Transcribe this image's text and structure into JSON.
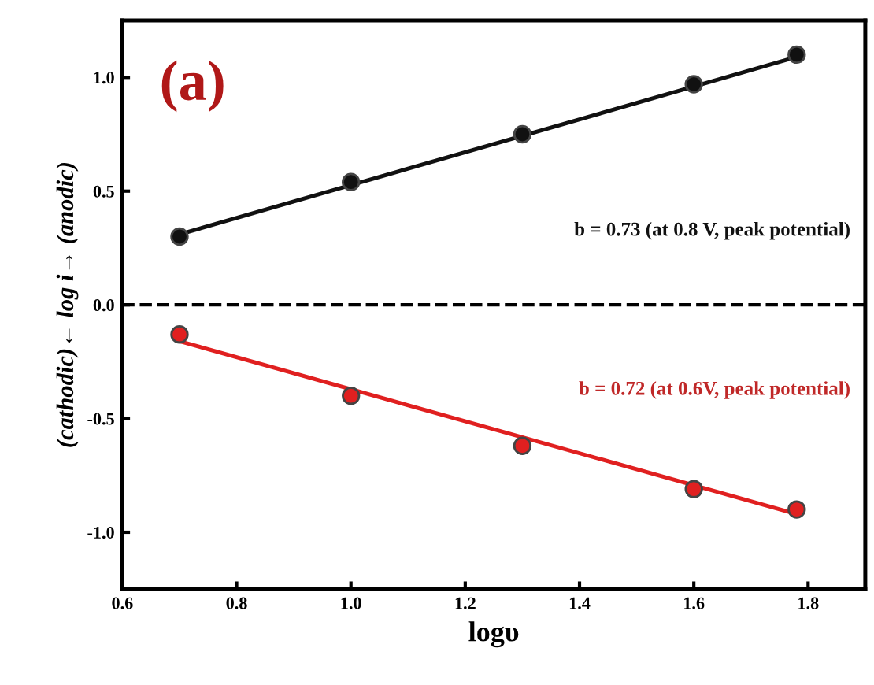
{
  "chart_data": {
    "type": "scatter",
    "xlabel": "logυ",
    "ylabel": "(cathodic)← log i→ (anodic)",
    "xlim": [
      0.6,
      1.9
    ],
    "ylim": [
      -1.25,
      1.25
    ],
    "xticks": [
      0.6,
      0.8,
      {
        "value": 1.0,
        "label": "1.0"
      },
      1.2,
      1.4,
      1.6,
      1.8
    ],
    "yticks": [
      {
        "value": -1.0,
        "label": "-1.0"
      },
      -0.5,
      {
        "value": 0.0,
        "label": "0.0"
      },
      0.5,
      {
        "value": 1.0,
        "label": "1.0"
      }
    ],
    "grid": false,
    "series": [
      {
        "color": "#111111",
        "marker": "circle",
        "x": [
          0.7,
          1.0,
          1.3,
          1.6,
          1.78
        ],
        "values": [
          0.3,
          0.54,
          0.75,
          0.97,
          1.1
        ]
      },
      {
        "type": "line",
        "marker": "none",
        "color": "#111111",
        "x": [
          0.7,
          1.78
        ],
        "values": [
          0.31,
          1.09
        ]
      },
      {
        "color": "#e02020",
        "marker": "circle",
        "x": [
          0.7,
          1.0,
          1.3,
          1.6,
          1.78
        ],
        "values": [
          -0.13,
          -0.4,
          -0.62,
          -0.81,
          -0.9
        ]
      },
      {
        "type": "line",
        "marker": "none",
        "color": "#e02020",
        "x": [
          0.7,
          1.78
        ],
        "values": [
          -0.16,
          -0.92
        ]
      }
    ],
    "ref_lines": [
      {
        "axis": "y",
        "value": 0.0,
        "color": "#000000",
        "line_style": "dashed"
      }
    ],
    "annotations": [
      "(a)",
      "b = 0.73 (at 0.8 V, peak potential)",
      "b = 0.72 (at 0.6V, peak potential)"
    ]
  }
}
